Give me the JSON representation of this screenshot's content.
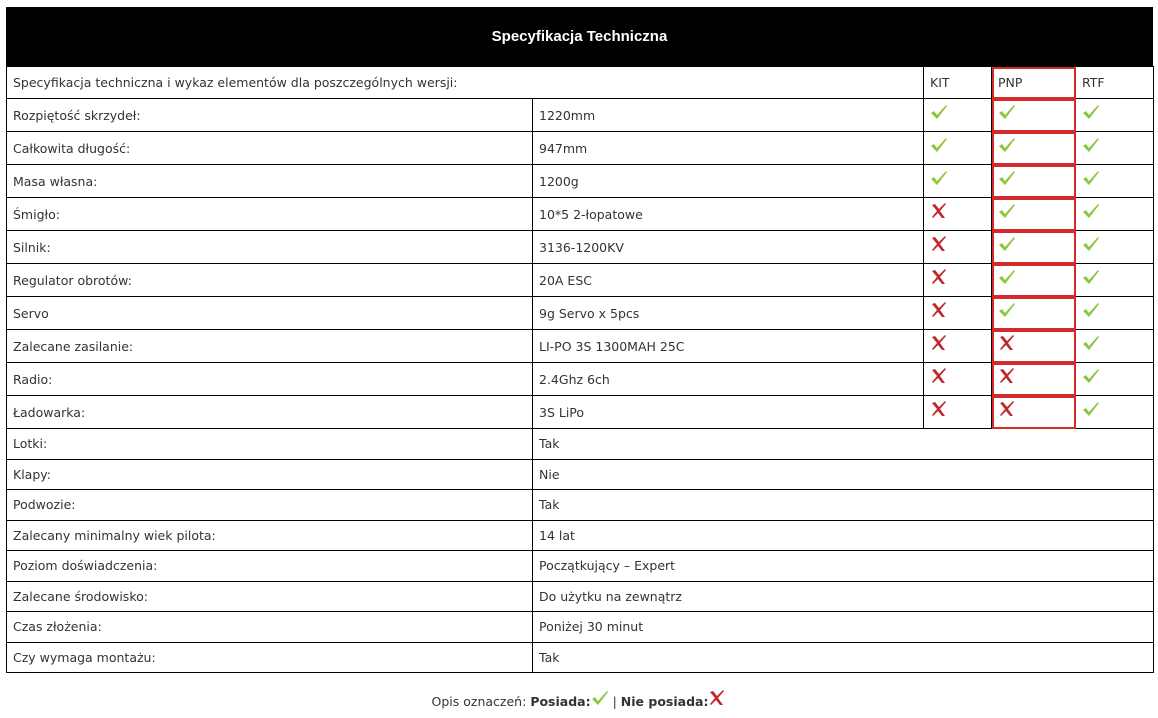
{
  "title": "Specyfikacja Techniczna",
  "header": {
    "label": "Specyfikacja techniczna i wykaz elementów dla poszczególnych wersji:",
    "cols": [
      "KIT",
      "PNP",
      "RTF"
    ]
  },
  "icon_colors": {
    "check": "#8dc63f",
    "cross": "#c0272d",
    "highlight": "#d42a2a"
  },
  "rows": [
    {
      "label": "Rozpiętość skrzydeł:",
      "value": "1220mm",
      "kit": true,
      "pnp": true,
      "rtf": true
    },
    {
      "label": "Całkowita długość:",
      "value": "947mm",
      "kit": true,
      "pnp": true,
      "rtf": true
    },
    {
      "label": "Masa własna:",
      "value": "1200g",
      "kit": true,
      "pnp": true,
      "rtf": true
    },
    {
      "label": "Śmigło:",
      "value": "10*5 2-łopatowe",
      "kit": false,
      "pnp": true,
      "rtf": true
    },
    {
      "label": "Silnik:",
      "value": "3136-1200KV",
      "kit": false,
      "pnp": true,
      "rtf": true
    },
    {
      "label": "Regulator obrotów:",
      "value": "20A ESC",
      "kit": false,
      "pnp": true,
      "rtf": true
    },
    {
      "label": "Servo",
      "value": "9g Servo x 5pcs",
      "kit": false,
      "pnp": true,
      "rtf": true
    },
    {
      "label": "Zalecane zasilanie:",
      "value": "LI-PO 3S 1300MAH 25C",
      "kit": false,
      "pnp": false,
      "rtf": true
    },
    {
      "label": "Radio:",
      "value": "2.4Ghz 6ch",
      "kit": false,
      "pnp": false,
      "rtf": true
    },
    {
      "label": "Ładowarka:",
      "value": "3S LiPo",
      "kit": false,
      "pnp": false,
      "rtf": true
    }
  ],
  "extra": [
    {
      "label": "Lotki:",
      "value": "Tak"
    },
    {
      "label": "Klapy:",
      "value": "Nie"
    },
    {
      "label": "Podwozie:",
      "value": "Tak"
    },
    {
      "label": "Zalecany minimalny wiek pilota:",
      "value": "14 lat"
    },
    {
      "label": "Poziom doświadczenia:",
      "value": "Początkujący – Expert"
    },
    {
      "label": "Zalecane środowisko:",
      "value": "Do użytku na zewnątrz"
    },
    {
      "label": "Czas złożenia:",
      "value": "Poniżej 30 minut"
    },
    {
      "label": "Czy wymaga montażu:",
      "value": "Tak"
    }
  ],
  "legend": {
    "prefix": "Opis oznaczeń:",
    "has": "Posiada:",
    "sep": "|",
    "has_not": "Nie posiada:"
  }
}
